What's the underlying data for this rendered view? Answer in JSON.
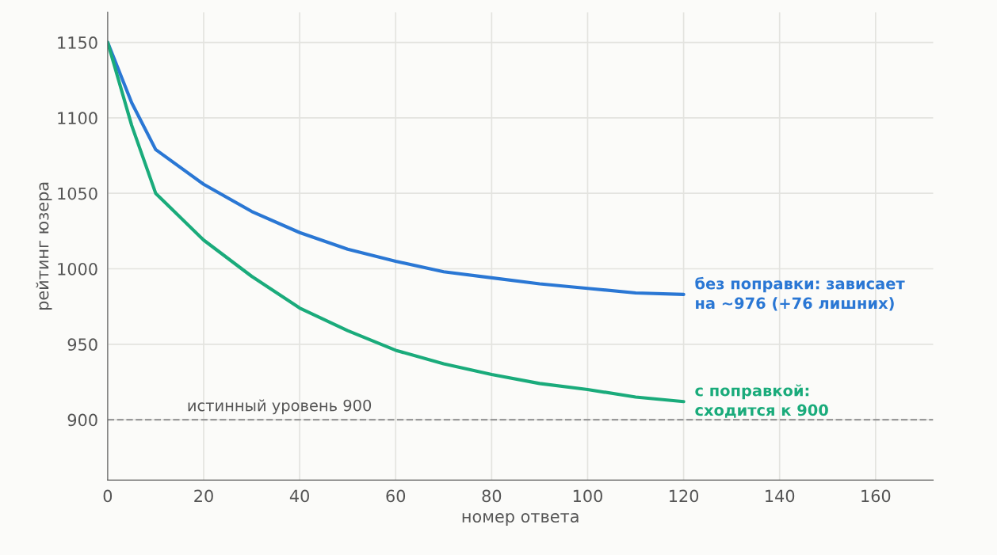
{
  "chart_data": {
    "type": "line",
    "xlabel": "номер ответа",
    "ylabel": "рейтинг юзера",
    "xlim": [
      0,
      172
    ],
    "xticks": [
      0,
      20,
      40,
      60,
      80,
      100,
      120,
      140,
      160
    ],
    "ylim": [
      860,
      1170
    ],
    "yticks": [
      900,
      950,
      1000,
      1050,
      1100,
      1150
    ],
    "grid": true,
    "line_style": "solid",
    "marker": "none",
    "ref_lines": [
      {
        "axis": "y",
        "value": 900,
        "label": "истинный уровень 900",
        "color": "#999999",
        "line_style": "dashed"
      }
    ],
    "series": [
      {
        "name": "без поправки: зависает\nна ~976 (+76 лишних)",
        "color": "#2a77d4",
        "x": [
          0,
          5,
          10,
          20,
          30,
          40,
          50,
          60,
          70,
          80,
          90,
          100,
          110,
          120
        ],
        "values": [
          1150,
          1110,
          1079,
          1056,
          1038,
          1024,
          1013,
          1005,
          998,
          994,
          990,
          987,
          984,
          983
        ]
      },
      {
        "name": "с поправкой:\nсходится к 900",
        "color": "#1aab7b",
        "x": [
          0,
          5,
          10,
          20,
          30,
          40,
          50,
          60,
          70,
          80,
          90,
          100,
          110,
          120
        ],
        "values": [
          1150,
          1095,
          1050,
          1019,
          995,
          974,
          959,
          946,
          937,
          930,
          924,
          920,
          915,
          912
        ]
      }
    ]
  }
}
